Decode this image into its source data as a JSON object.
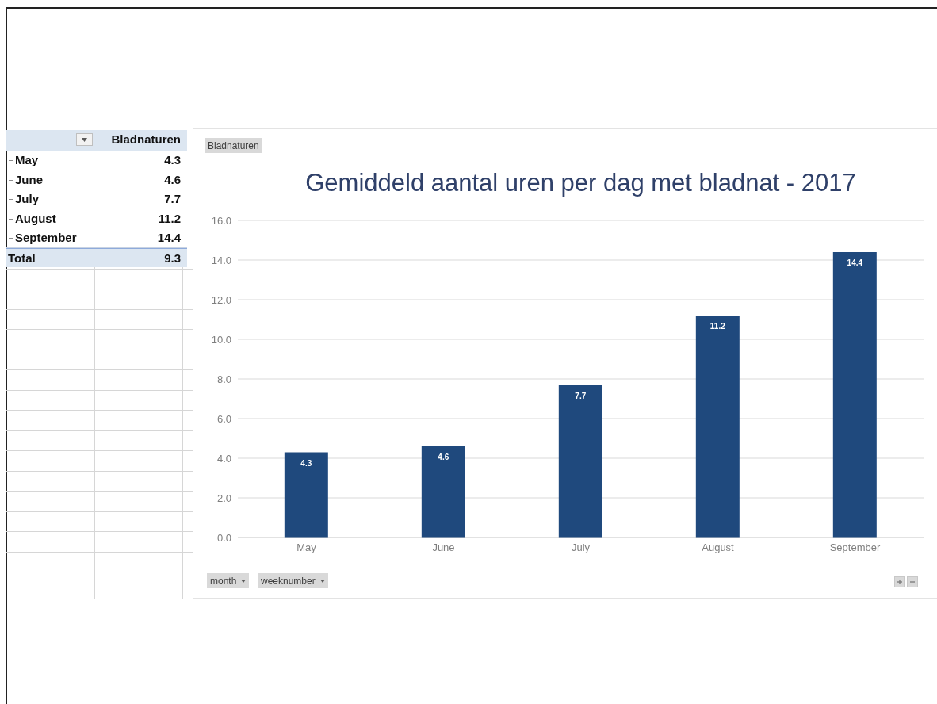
{
  "chart_data": [
    {
      "type": "other",
      "annotations": [
        "Bladnaturen"
      ],
      "categories": [
        "May",
        "June",
        "July",
        "August",
        "September",
        "Total"
      ],
      "values": [
        4.3,
        4.6,
        7.7,
        11.2,
        14.4,
        9.3
      ],
      "data_labels": true
    },
    {
      "type": "bar",
      "title": "Gemiddeld aantal uren per dag met bladnat - 2017",
      "categories": [
        "May",
        "June",
        "July",
        "August",
        "September"
      ],
      "values": [
        4.3,
        4.6,
        7.7,
        11.2,
        14.4
      ],
      "color": "#1f497d",
      "ylim": [
        0,
        16
      ],
      "yticks": [
        {
          "value": 0,
          "label": "0.0"
        },
        {
          "value": 2,
          "label": "2.0"
        },
        {
          "value": 4,
          "label": "4.0"
        },
        {
          "value": 6,
          "label": "6.0"
        },
        {
          "value": 8,
          "label": "8.0"
        },
        {
          "value": 10,
          "label": "10.0"
        },
        {
          "value": 12,
          "label": "12.0"
        },
        {
          "value": 14,
          "label": "14.0"
        },
        {
          "value": 16,
          "label": "16.0"
        }
      ],
      "grid": "y",
      "data_labels": true,
      "annotations": [
        "Bladnaturen",
        "month",
        "weeknumber"
      ]
    }
  ]
}
